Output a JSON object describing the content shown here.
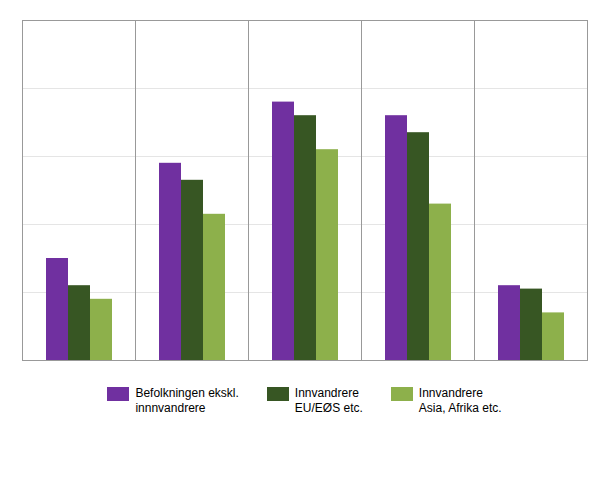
{
  "chart_data": {
    "type": "bar",
    "categories": [
      null,
      null,
      null,
      null,
      null
    ],
    "series": [
      {
        "name": "Befolkningen ekskl.\ninnnvandrere",
        "color": "#7030A0",
        "values": [
          30,
          58,
          76,
          72,
          22
        ]
      },
      {
        "name": "Innvandrere\nEU/EØS etc.",
        "color": "#375623",
        "values": [
          22,
          53,
          72,
          67,
          21
        ]
      },
      {
        "name": "Innvandrere\nAsia, Afrika etc.",
        "color": "#8DB04B",
        "values": [
          18,
          43,
          62,
          46,
          14
        ]
      }
    ],
    "ylim": [
      0,
      100
    ],
    "yticks": [
      20,
      40,
      60,
      80,
      100
    ],
    "grid": true,
    "tick_labels": false,
    "legend": "bottom"
  }
}
